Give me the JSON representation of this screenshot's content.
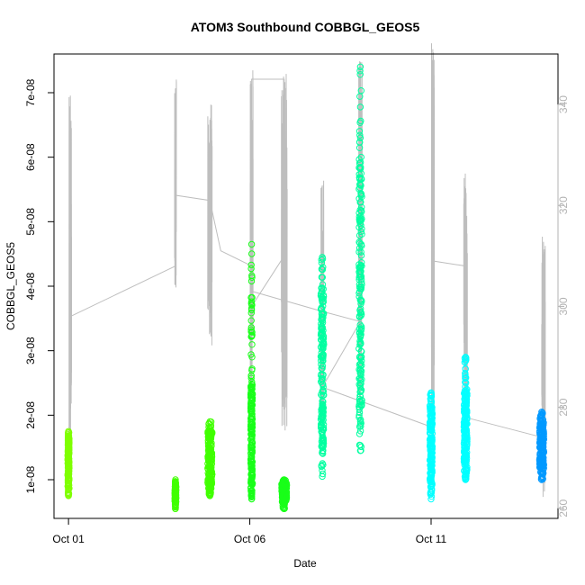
{
  "chart_data": {
    "type": "scatter",
    "title": "ATOM3 Southbound COBBGL_GEOS5",
    "xlabel": "Date",
    "ylabel": "COBBGL_GEOS5",
    "x_ticks": [
      "Oct 01",
      "Oct 06",
      "Oct 11"
    ],
    "y_ticks": [
      "1e-08",
      "2e-08",
      "3e-08",
      "4e-08",
      "5e-08",
      "6e-08",
      "7e-08"
    ],
    "ylim": [
      4e-09,
      7.6e-08
    ],
    "xlim_days": [
      0.6,
      14.5
    ],
    "right_axis_ticks": [
      "260",
      "280",
      "300",
      "320",
      "340"
    ],
    "right_ylim": [
      258,
      350
    ],
    "grid": false,
    "legend": "none",
    "colors": {
      "background": "#ffffff",
      "frame": "#000000",
      "secondary_line": "#bebebe",
      "right_axis": "#b3b3b3"
    },
    "series": [
      {
        "color": "#7fff00",
        "clusters": [
          {
            "x": 1.0,
            "ymin": 7.5e-09,
            "ymax": 1.75e-08,
            "core_min": 8.5e-09,
            "core_max": 1.65e-08,
            "spread": 0.04
          }
        ]
      },
      {
        "color": "#40ff00",
        "clusters": [
          {
            "x": 3.95,
            "ymin": 5.5e-09,
            "ymax": 1e-08,
            "core_min": 6.5e-09,
            "core_max": 9e-09,
            "spread": 0.03
          },
          {
            "x": 4.9,
            "ymin": 7.5e-09,
            "ymax": 1.9e-08,
            "core_min": 8.5e-09,
            "core_max": 1.75e-08,
            "spread": 0.12
          }
        ]
      },
      {
        "color": "#19ff19",
        "clusters": [
          {
            "x": 6.05,
            "ymin": 7e-09,
            "ymax": 4.65e-08,
            "core_min": 8e-09,
            "core_max": 2.5e-08,
            "spread": 0.05
          },
          {
            "x": 6.95,
            "ymin": 5.5e-09,
            "ymax": 1e-08,
            "core_min": 6.5e-09,
            "core_max": 9.5e-09,
            "spread": 0.14
          }
        ]
      },
      {
        "color": "#00ffa0",
        "clusters": [
          {
            "x": 8.0,
            "ymin": 1.05e-08,
            "ymax": 4.45e-08,
            "core_min": 1.5e-08,
            "core_max": 4e-08,
            "spread": 0.08
          },
          {
            "x": 9.05,
            "ymin": 1.45e-08,
            "ymax": 7.4e-08,
            "core_min": 1.9e-08,
            "core_max": 6e-08,
            "spread": 0.08
          }
        ]
      },
      {
        "color": "#00ffff",
        "clusters": [
          {
            "x": 11.0,
            "ymin": 7e-09,
            "ymax": 2.35e-08,
            "core_min": 9e-09,
            "core_max": 2.2e-08,
            "spread": 0.07
          },
          {
            "x": 11.95,
            "ymin": 1e-08,
            "ymax": 2.9e-08,
            "core_min": 1.1e-08,
            "core_max": 2.4e-08,
            "spread": 0.09
          }
        ]
      },
      {
        "color": "#0099ff",
        "clusters": [
          {
            "x": 14.05,
            "ymin": 1e-08,
            "ymax": 2.05e-08,
            "core_min": 1.1e-08,
            "core_max": 1.95e-08,
            "spread": 0.12
          }
        ]
      }
    ],
    "secondary_series": {
      "name": "",
      "color": "#bebebe",
      "bursts": [
        {
          "x": 1.05,
          "low": 270,
          "high": 342,
          "width": 0.07
        },
        {
          "x": 3.95,
          "low": 302,
          "high": 345,
          "width": 0.05
        },
        {
          "x": 4.9,
          "low": 292,
          "high": 340,
          "width": 0.12
        },
        {
          "x": 6.05,
          "low": 278,
          "high": 347,
          "width": 0.08
        },
        {
          "x": 6.95,
          "low": 270,
          "high": 348,
          "width": 0.16
        },
        {
          "x": 8.0,
          "low": 272,
          "high": 325,
          "width": 0.08
        },
        {
          "x": 9.05,
          "low": 275,
          "high": 349,
          "width": 0.1
        },
        {
          "x": 11.05,
          "low": 272,
          "high": 353,
          "width": 0.08
        },
        {
          "x": 11.95,
          "low": 272,
          "high": 327,
          "width": 0.1
        },
        {
          "x": 14.1,
          "low": 262,
          "high": 315,
          "width": 0.1
        }
      ],
      "connector": [
        [
          1.05,
          298
        ],
        [
          3.95,
          308
        ],
        [
          3.95,
          322
        ],
        [
          4.9,
          321
        ],
        [
          5.2,
          311
        ],
        [
          6.05,
          308
        ],
        [
          6.05,
          300
        ],
        [
          6.95,
          310
        ],
        [
          6.95,
          345
        ],
        [
          6.05,
          345
        ],
        [
          6.05,
          303
        ],
        [
          8.0,
          299
        ],
        [
          9.05,
          297
        ],
        [
          8.0,
          284
        ],
        [
          11.05,
          276
        ],
        [
          11.05,
          309
        ],
        [
          11.95,
          308
        ],
        [
          11.95,
          278
        ],
        [
          14.1,
          274
        ]
      ]
    }
  }
}
